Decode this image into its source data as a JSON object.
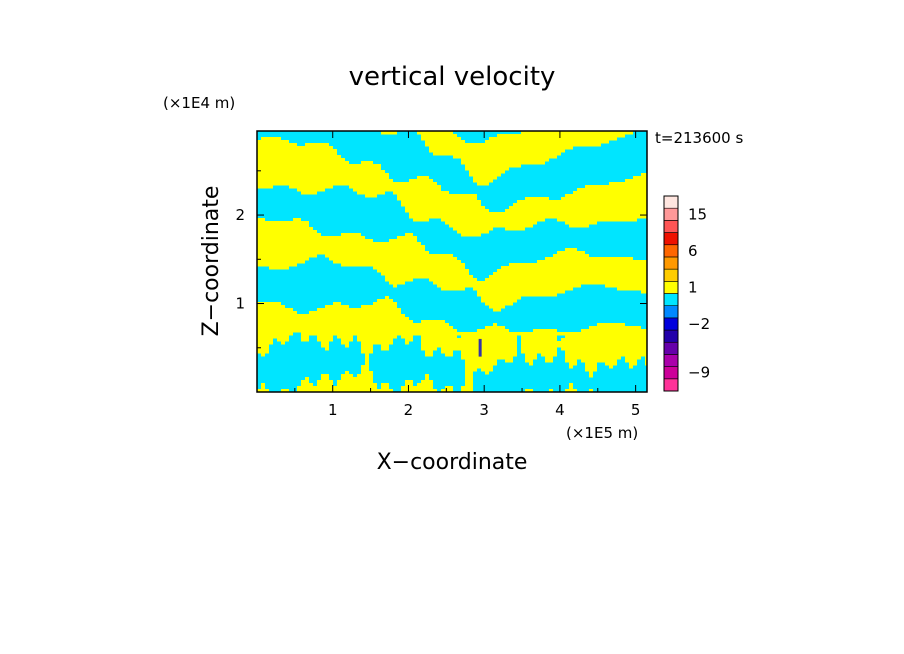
{
  "chart_data": {
    "type": "heatmap",
    "title": "vertical velocity",
    "xlabel": "X−coordinate",
    "ylabel": "Z−coordinate",
    "x_unit_label": "(×1E5 m)",
    "y_unit_label": "(×1E4 m)",
    "time_label": "t=213600 s",
    "xlim": [
      0,
      5.15
    ],
    "ylim": [
      0,
      2.95
    ],
    "x_ticks": [
      1,
      2,
      3,
      4,
      5
    ],
    "x_tick_labels": [
      "1",
      "2",
      "3",
      "4",
      "5"
    ],
    "y_ticks": [
      1,
      2
    ],
    "y_tick_labels": [
      "1",
      "2"
    ],
    "grid": false,
    "dominant_colors": {
      "positive": "#ffff00",
      "negative": "#00e5ff"
    },
    "colorbar": {
      "placement": "right",
      "levels": [
        {
          "color": "#ff3399",
          "value_label": ""
        },
        {
          "color": "#cc0099",
          "value_label": "−9"
        },
        {
          "color": "#aa00aa",
          "value_label": ""
        },
        {
          "color": "#6600aa",
          "value_label": ""
        },
        {
          "color": "#2200aa",
          "value_label": ""
        },
        {
          "color": "#0000dd",
          "value_label": "−2"
        },
        {
          "color": "#0088ff",
          "value_label": ""
        },
        {
          "color": "#00e5ff",
          "value_label": ""
        },
        {
          "color": "#ffff00",
          "value_label": "1"
        },
        {
          "color": "#ffcc00",
          "value_label": ""
        },
        {
          "color": "#ff9900",
          "value_label": ""
        },
        {
          "color": "#ff6600",
          "value_label": "6"
        },
        {
          "color": "#ee1100",
          "value_label": ""
        },
        {
          "color": "#ff5555",
          "value_label": ""
        },
        {
          "color": "#ff9999",
          "value_label": "15"
        },
        {
          "color": "#ffe6e0",
          "value_label": ""
        }
      ]
    }
  }
}
